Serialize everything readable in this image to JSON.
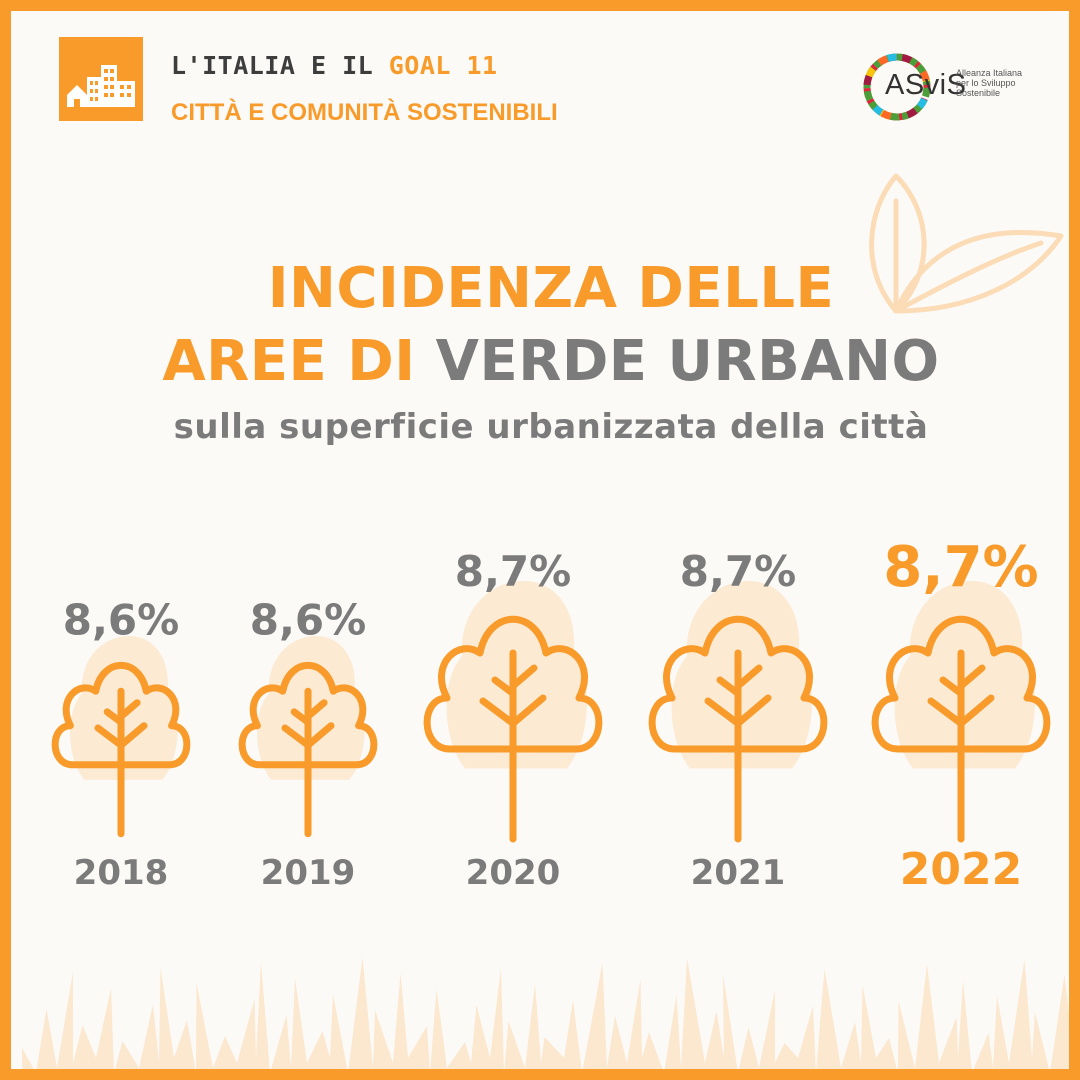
{
  "header": {
    "line1_prefix": "L'ITALIA E IL ",
    "line1_goal": "GOAL 11",
    "line2": "CITTÀ E COMUNITÀ SOSTENIBILI"
  },
  "logo": {
    "wordmark": "ASviS",
    "tagline": [
      "Alleanza Italiana",
      "per lo Sviluppo",
      "Sostenibile"
    ]
  },
  "title": {
    "line1": "INCIDENZA DELLE",
    "line2_orange": "AREE DI ",
    "line2_grey": "VERDE URBANO",
    "subtitle": "sulla superficie urbanizzata della città"
  },
  "icons": {
    "goal": "city-buildings-icon",
    "decoration": "leaves-icon",
    "marks": "tree-icon",
    "ground": "grass-icon"
  },
  "colors": {
    "accent": "#f89b2b",
    "text_grey": "#7b7b7b",
    "tree_fill": "#fde6cc",
    "border": "#f89b2b",
    "background": "#fbfaf7"
  },
  "chart_data": {
    "type": "pictograph",
    "title": "INCIDENZA DELLE AREE DI VERDE URBANO",
    "subtitle": "sulla superficie urbanizzata della città",
    "categories": [
      "2018",
      "2019",
      "2020",
      "2021",
      "2022"
    ],
    "values": [
      8.6,
      8.6,
      8.7,
      8.7,
      8.7
    ],
    "labels": [
      "8,6%",
      "8,6%",
      "8,7%",
      "8,7%",
      "8,7%"
    ],
    "unit": "%",
    "highlight": "2022"
  }
}
